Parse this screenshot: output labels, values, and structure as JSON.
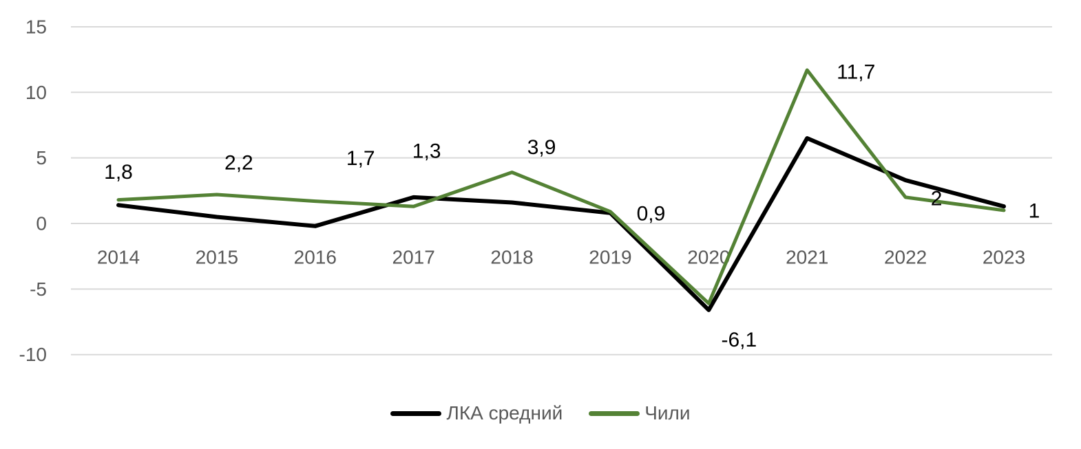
{
  "chart_data": {
    "type": "line",
    "x": [
      "2014",
      "2015",
      "2016",
      "2017",
      "2018",
      "2019",
      "2020",
      "2021",
      "2022",
      "2023"
    ],
    "series": [
      {
        "id": "lka-avg",
        "name": "ЛКА средний",
        "color": "#000000",
        "stroke_width": 6,
        "values": [
          1.4,
          0.5,
          -0.2,
          2.0,
          1.6,
          0.8,
          -6.6,
          6.5,
          3.3,
          1.3
        ]
      },
      {
        "id": "chile",
        "name": "Чили",
        "color": "#548235",
        "stroke_width": 5,
        "values": [
          1.8,
          2.2,
          1.7,
          1.3,
          3.9,
          0.9,
          -6.1,
          11.7,
          2,
          1
        ],
        "labels": [
          "1,8",
          "2,2",
          "1,7",
          "1,3",
          "3,9",
          "0,9",
          "-6,1",
          "11,7",
          "2",
          "1"
        ],
        "label_offsets": [
          [
            0,
            -40
          ],
          [
            32,
            -46
          ],
          [
            66,
            -62
          ],
          [
            19,
            -80
          ],
          [
            43,
            -36
          ],
          [
            59,
            3
          ],
          [
            44,
            53
          ],
          [
            71,
            3
          ],
          [
            45,
            2
          ],
          [
            44,
            1
          ]
        ]
      }
    ],
    "yticks": [
      15,
      10,
      5,
      0,
      -5,
      -10
    ],
    "ylim": [
      -10,
      15
    ],
    "grid": true,
    "legend_position": "bottom",
    "decimal_separator": ","
  },
  "legend": {
    "items": [
      {
        "label": "ЛКА средний",
        "color": "#000000"
      },
      {
        "label": "Чили",
        "color": "#548235"
      }
    ]
  },
  "colors": {
    "background": "#ffffff",
    "grid": "#d9d9d9",
    "axis_text": "#595959",
    "label_text": "#000000"
  }
}
